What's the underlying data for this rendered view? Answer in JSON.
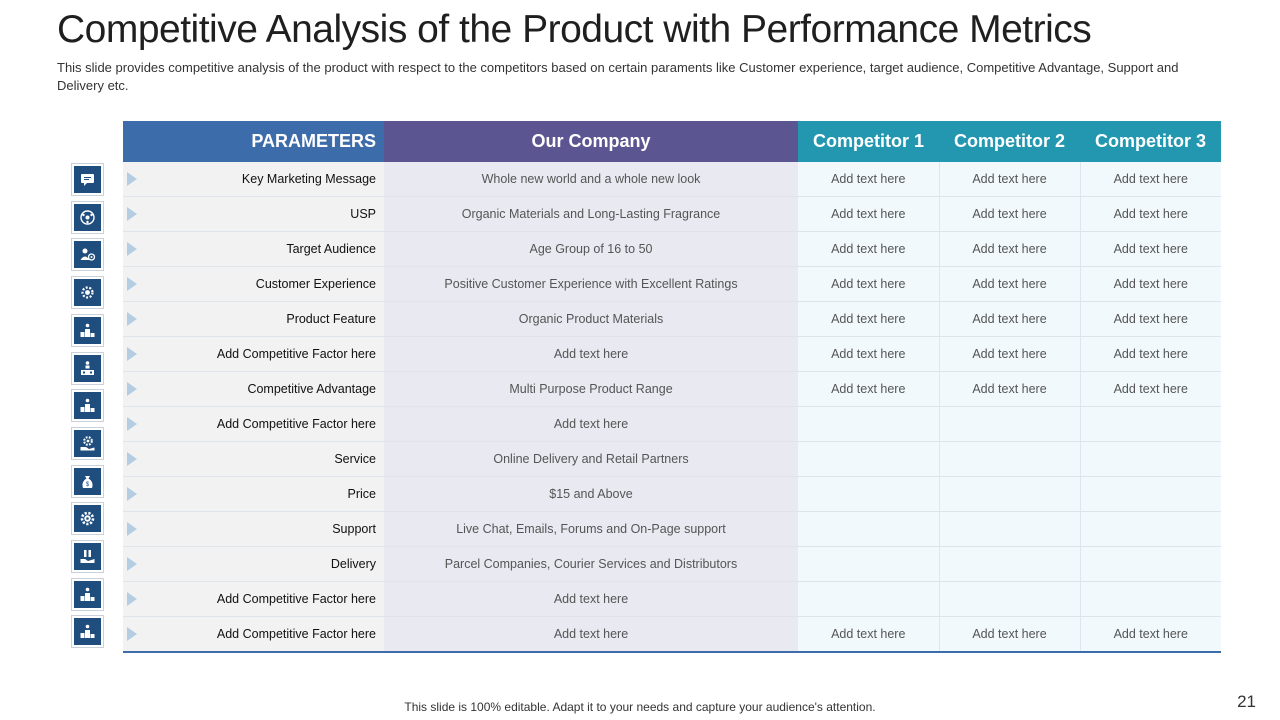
{
  "title": "Competitive Analysis of the Product with Performance Metrics",
  "subtitle": "This slide provides competitive analysis of the product with respect to the competitors based on certain paraments like Customer experience, target audience, Competitive Advantage, Support and Delivery etc.",
  "table": {
    "headers": [
      "PARAMETERS",
      "Our Company",
      "Competitor 1",
      "Competitor 2",
      "Competitor 3"
    ],
    "rows": [
      {
        "icon": "chat-message-icon",
        "parameter": "Key Marketing Message",
        "ours": "Whole new world and a whole new look",
        "c1": "Add text here",
        "c2": "Add text here",
        "c3": "Add text here"
      },
      {
        "icon": "globe-network-icon",
        "parameter": "USP",
        "ours": "Organic Materials  and Long-Lasting Fragrance",
        "c1": "Add text here",
        "c2": "Add text here",
        "c3": "Add text here"
      },
      {
        "icon": "target-audience-icon",
        "parameter": "Target Audience",
        "ours": "Age Group of 16 to 50",
        "c1": "Add text here",
        "c2": "Add text here",
        "c3": "Add text here"
      },
      {
        "icon": "gear-star-icon",
        "parameter": "Customer Experience",
        "ours": "Positive Customer  Experience with Excellent Ratings",
        "c1": "Add text here",
        "c2": "Add text here",
        "c3": "Add text here"
      },
      {
        "icon": "podium-icon",
        "parameter": "Product Feature",
        "ours": "Organic Product Materials",
        "c1": "Add text here",
        "c2": "Add text here",
        "c3": "Add text here"
      },
      {
        "icon": "team-podium-icon",
        "parameter": "Add Competitive Factor here",
        "ours": "Add text here",
        "c1": "Add text here",
        "c2": "Add text here",
        "c3": "Add text here"
      },
      {
        "icon": "podium-icon",
        "parameter": "Competitive Advantage",
        "ours": "Multi Purpose Product Range",
        "c1": "Add text here",
        "c2": "Add text here",
        "c3": "Add text here"
      },
      {
        "icon": "gear-hand-icon",
        "parameter": "Add Competitive Factor here",
        "ours": "Add text here",
        "c1": "",
        "c2": "",
        "c3": ""
      },
      {
        "icon": "money-bag-icon",
        "parameter": "Service",
        "ours": "Online Delivery  and Retail Partners",
        "c1": "",
        "c2": "",
        "c3": ""
      },
      {
        "icon": "gear-icon",
        "parameter": "Price",
        "ours": "$15 and Above",
        "c1": "",
        "c2": "",
        "c3": ""
      },
      {
        "icon": "support-hand-icon",
        "parameter": "Support",
        "ours": "Live Chat, Emails, Forums and On-Page support",
        "c1": "",
        "c2": "",
        "c3": ""
      },
      {
        "icon": "podium-icon",
        "parameter": "Delivery",
        "ours": "Parcel Companies, Courier Services  and Distributors",
        "c1": "",
        "c2": "",
        "c3": ""
      },
      {
        "icon": "podium-icon",
        "parameter": "Add Competitive Factor here",
        "ours": "Add text here",
        "c1": "",
        "c2": "",
        "c3": ""
      },
      {
        "icon": "",
        "parameter": "Add Competitive Factor here",
        "ours": "Add text here",
        "c1": "Add text here",
        "c2": "Add text here",
        "c3": "Add text here"
      }
    ]
  },
  "footer": "This slide is 100% editable. Adapt it to your needs and capture your audience's attention.",
  "page_number": "21",
  "colors": {
    "parameters_header": "#3d6cab",
    "our_company_header": "#5b5592",
    "competitor_header": "#2397b0",
    "icon_fill": "#1f4e7e"
  }
}
